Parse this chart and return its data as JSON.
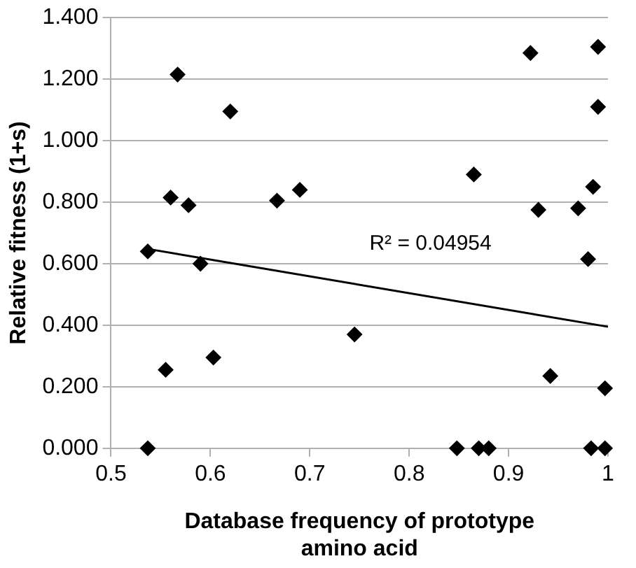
{
  "chart_data": {
    "type": "scatter",
    "xlabel": "Database frequency of prototype amino acid",
    "ylabel": "Relative fitness (1+s)",
    "xlim": [
      0.5,
      1
    ],
    "xticks": [
      0.5,
      0.6,
      0.7,
      0.8,
      0.9,
      {
        "value": 1,
        "label": "1"
      }
    ],
    "ylim": [
      0,
      1.4
    ],
    "yticks": [
      {
        "value": 0,
        "label": "0.000"
      },
      {
        "value": 0.2,
        "label": "0.200"
      },
      {
        "value": 0.4,
        "label": "0.400"
      },
      {
        "value": 0.6,
        "label": "0.600"
      },
      {
        "value": 0.8,
        "label": "0.800"
      },
      {
        "value": 1,
        "label": "1.000"
      },
      {
        "value": 1.2,
        "label": "1.200"
      },
      {
        "value": 1.4,
        "label": "1.400"
      }
    ],
    "grid": "y",
    "marker": "diamond",
    "legend": false,
    "series": [
      {
        "color": "#000000",
        "x": [
          0.537,
          0.537,
          0.555,
          0.56,
          0.567,
          0.578,
          0.59,
          0.603,
          0.62,
          0.667,
          0.69,
          0.745,
          0.848,
          0.865,
          0.87,
          0.88,
          0.922,
          0.93,
          0.942,
          0.97,
          0.98,
          0.983,
          0.985,
          0.99,
          0.99,
          0.997,
          0.997
        ],
        "values": [
          0.64,
          0,
          0.255,
          0.815,
          1.215,
          0.79,
          0.6,
          0.295,
          1.095,
          0.805,
          0.84,
          0.37,
          0,
          0.89,
          0,
          0,
          1.285,
          0.775,
          0.235,
          0.78,
          0.615,
          0,
          0.85,
          1.11,
          1.305,
          0.195,
          0
        ]
      },
      {
        "type": "line",
        "marker": "none",
        "color": "#000000",
        "x": [
          0.537,
          1
        ],
        "values": [
          0.648,
          0.395
        ]
      }
    ],
    "annotations": [
      "R² = 0.04954"
    ]
  }
}
